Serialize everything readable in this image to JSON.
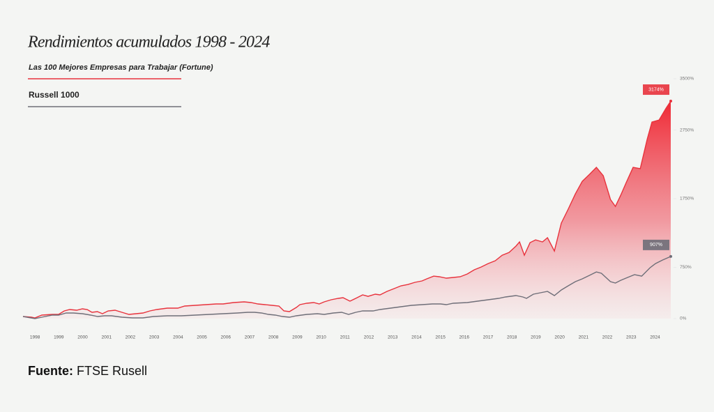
{
  "chart_data": {
    "type": "line",
    "title": "Rendimientos acumulados 1998 - 2024",
    "source_label": "Fuente:",
    "source": "FTSE Rusell",
    "xlim": [
      1998,
      2025.16
    ],
    "ylim": [
      0,
      3500
    ],
    "yticks": [
      {
        "value": 0,
        "label": "0%"
      },
      {
        "value": 750,
        "label": "750%"
      },
      {
        "value": 1750,
        "label": "1750%"
      },
      {
        "value": 2750,
        "label": "2750%"
      },
      {
        "value": 3500,
        "label": "3500%"
      }
    ],
    "xticks": [
      {
        "value": 1998.5,
        "label": "1998"
      },
      {
        "value": 1999.5,
        "label": "1999"
      },
      {
        "value": 2000.5,
        "label": "2000"
      },
      {
        "value": 2001.5,
        "label": "2001"
      },
      {
        "value": 2002.5,
        "label": "2002"
      },
      {
        "value": 2003.5,
        "label": "2003"
      },
      {
        "value": 2004.5,
        "label": "2004"
      },
      {
        "value": 2005.5,
        "label": "2005"
      },
      {
        "value": 2006.5,
        "label": "2006"
      },
      {
        "value": 2007.5,
        "label": "2007"
      },
      {
        "value": 2008.5,
        "label": "2008"
      },
      {
        "value": 2009.5,
        "label": "2009"
      },
      {
        "value": 2010.5,
        "label": "2010"
      },
      {
        "value": 2011.5,
        "label": "2011"
      },
      {
        "value": 2012.5,
        "label": "2012"
      },
      {
        "value": 2013.5,
        "label": "2013"
      },
      {
        "value": 2014.5,
        "label": "2014"
      },
      {
        "value": 2015.5,
        "label": "2015"
      },
      {
        "value": 2016.5,
        "label": "2016"
      },
      {
        "value": 2017.5,
        "label": "2017"
      },
      {
        "value": 2018.5,
        "label": "2018"
      },
      {
        "value": 2019.5,
        "label": "2019"
      },
      {
        "value": 2020.5,
        "label": "2020"
      },
      {
        "value": 2021.5,
        "label": "2021"
      },
      {
        "value": 2022.5,
        "label": "2022"
      },
      {
        "value": 2023.5,
        "label": "2023"
      },
      {
        "value": 2024.5,
        "label": "2024"
      }
    ],
    "grid": false,
    "series": [
      {
        "name": "Las 100 Mejores Empresas para Trabajar (Fortune)",
        "color": "#e8323c",
        "area": true,
        "x": [
          1998.0,
          1998.35,
          1998.5,
          1998.79,
          1999.23,
          1999.49,
          1999.73,
          1999.96,
          2000.25,
          2000.49,
          2000.69,
          2000.89,
          2001.12,
          2001.33,
          2001.57,
          2001.86,
          2002.15,
          2002.44,
          2002.74,
          2003.03,
          2003.32,
          2003.61,
          2004.05,
          2004.49,
          2004.78,
          2005.22,
          2005.66,
          2006.1,
          2006.39,
          2006.83,
          2007.27,
          2007.56,
          2007.85,
          2008.15,
          2008.44,
          2008.73,
          2008.94,
          2009.17,
          2009.46,
          2009.61,
          2009.9,
          2010.19,
          2010.42,
          2010.63,
          2010.92,
          2011.22,
          2011.42,
          2011.71,
          2011.95,
          2012.24,
          2012.47,
          2012.77,
          2012.97,
          2013.26,
          2013.56,
          2013.85,
          2014.14,
          2014.43,
          2014.73,
          2014.93,
          2015.22,
          2015.46,
          2015.75,
          2016.04,
          2016.33,
          2016.63,
          2016.92,
          2017.21,
          2017.5,
          2017.8,
          2018.09,
          2018.38,
          2018.67,
          2018.82,
          2019.02,
          2019.26,
          2019.49,
          2019.78,
          2019.99,
          2020.28,
          2020.57,
          2020.86,
          2021.16,
          2021.45,
          2021.75,
          2022.04,
          2022.33,
          2022.63,
          2022.84,
          2023.06,
          2023.29,
          2023.58,
          2023.88,
          2024.17,
          2024.37,
          2024.67,
          2024.96,
          2025.16
        ],
        "values": [
          31,
          20,
          10,
          51,
          61,
          61,
          112,
          132,
          122,
          142,
          132,
          92,
          102,
          71,
          112,
          122,
          92,
          61,
          71,
          81,
          112,
          132,
          153,
          153,
          183,
          193,
          203,
          214,
          214,
          234,
          244,
          234,
          214,
          203,
          193,
          183,
          112,
          102,
          163,
          203,
          224,
          234,
          214,
          244,
          275,
          295,
          305,
          254,
          295,
          346,
          325,
          356,
          346,
          397,
          437,
          478,
          498,
          529,
          549,
          580,
          620,
          610,
          590,
          600,
          610,
          651,
          712,
          753,
          803,
          844,
          925,
          966,
          1058,
          1119,
          925,
          1109,
          1149,
          1119,
          1180,
          986,
          1393,
          1597,
          1820,
          2003,
          2105,
          2207,
          2085,
          1739,
          1637,
          1800,
          1983,
          2207,
          2187,
          2614,
          2868,
          2898,
          3071,
          3174
        ],
        "value_labels": [
          null,
          null,
          null,
          null,
          null,
          null,
          null,
          null,
          null,
          null,
          null,
          null,
          null,
          null,
          null,
          null,
          null,
          null,
          null,
          null,
          null,
          null,
          null,
          null,
          null,
          null,
          null,
          null,
          null,
          null,
          null,
          null,
          null,
          null,
          null,
          null,
          null,
          null,
          null,
          null,
          null,
          null,
          null,
          null,
          null,
          null,
          null,
          null,
          null,
          null,
          null,
          null,
          null,
          null,
          null,
          null,
          null,
          null,
          null,
          null,
          null,
          null,
          null,
          null,
          null,
          null,
          null,
          null,
          null,
          null,
          null,
          null,
          null,
          null,
          null,
          null,
          null,
          null,
          null,
          null,
          null,
          null,
          null,
          null,
          null,
          null,
          null,
          null,
          null,
          null,
          null,
          null,
          null,
          null,
          null,
          null,
          null,
          "3174%"
        ]
      },
      {
        "name": "Russell 1000",
        "color": "#6e6e78",
        "area": false,
        "x": [
          1998.0,
          1998.5,
          1998.79,
          1999.23,
          1999.49,
          1999.81,
          2000.11,
          2000.49,
          2000.84,
          2001.13,
          2001.42,
          2001.71,
          2002.15,
          2002.59,
          2003.03,
          2003.47,
          2004.05,
          2004.64,
          2005.22,
          2005.81,
          2006.39,
          2006.98,
          2007.42,
          2007.71,
          2008.0,
          2008.29,
          2008.58,
          2008.88,
          2009.17,
          2009.46,
          2009.9,
          2010.34,
          2010.63,
          2011.01,
          2011.36,
          2011.65,
          2011.95,
          2012.24,
          2012.68,
          2012.97,
          2013.41,
          2013.85,
          2014.29,
          2014.73,
          2015.16,
          2015.51,
          2015.75,
          2016.04,
          2016.63,
          2017.06,
          2017.5,
          2017.94,
          2018.23,
          2018.67,
          2018.96,
          2019.11,
          2019.4,
          2019.69,
          2019.99,
          2020.28,
          2020.57,
          2020.86,
          2021.16,
          2021.45,
          2021.75,
          2022.04,
          2022.25,
          2022.63,
          2022.84,
          2023.06,
          2023.35,
          2023.64,
          2023.94,
          2024.29,
          2024.52,
          2024.81,
          2025.16
        ],
        "values": [
          31,
          0,
          20,
          51,
          51,
          81,
          81,
          71,
          51,
          31,
          41,
          41,
          20,
          10,
          10,
          31,
          41,
          41,
          51,
          61,
          71,
          81,
          92,
          92,
          81,
          61,
          51,
          31,
          20,
          41,
          61,
          71,
          61,
          81,
          92,
          61,
          92,
          112,
          112,
          132,
          153,
          173,
          193,
          203,
          214,
          214,
          203,
          224,
          234,
          254,
          275,
          295,
          315,
          336,
          315,
          295,
          356,
          376,
          397,
          336,
          417,
          478,
          539,
          580,
          631,
          681,
          661,
          539,
          519,
          559,
          600,
          641,
          620,
          742,
          803,
          854,
          907
        ],
        "value_labels": [
          null,
          null,
          null,
          null,
          null,
          null,
          null,
          null,
          null,
          null,
          null,
          null,
          null,
          null,
          null,
          null,
          null,
          null,
          null,
          null,
          null,
          null,
          null,
          null,
          null,
          null,
          null,
          null,
          null,
          null,
          null,
          null,
          null,
          null,
          null,
          null,
          null,
          null,
          null,
          null,
          null,
          null,
          null,
          null,
          null,
          null,
          null,
          null,
          null,
          null,
          null,
          null,
          null,
          null,
          null,
          null,
          null,
          null,
          null,
          null,
          null,
          null,
          null,
          null,
          null,
          null,
          null,
          null,
          null,
          null,
          null,
          null,
          null,
          null,
          null,
          null,
          "907%"
        ]
      }
    ]
  }
}
